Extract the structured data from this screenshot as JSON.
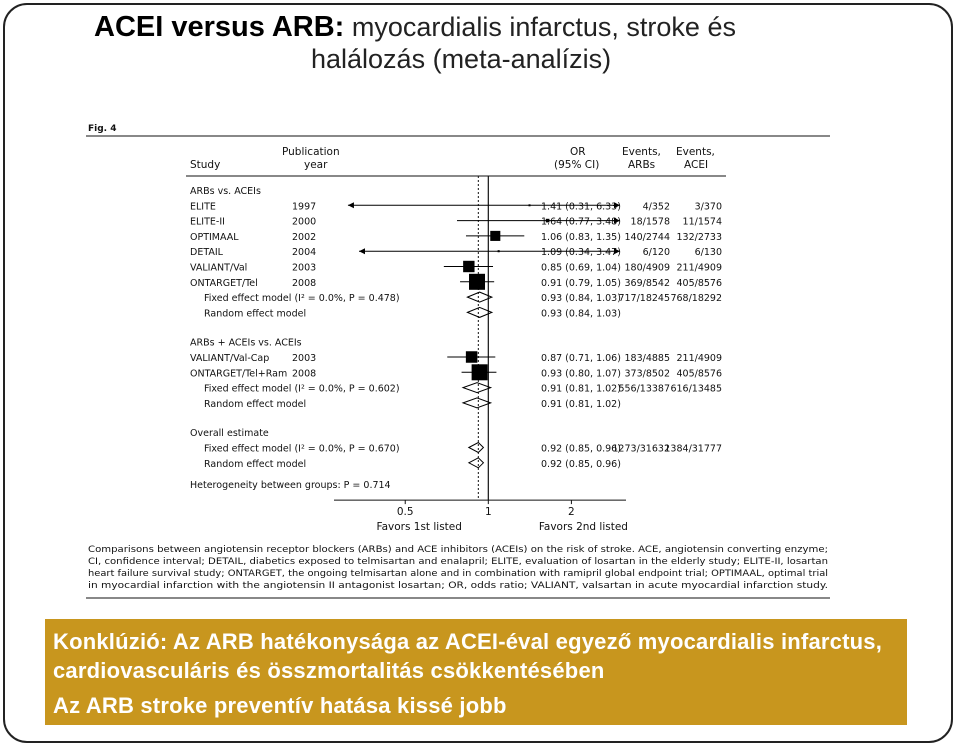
{
  "title": {
    "bold": "ACEI versus ARB:",
    "rest": " myocardialis infarctus, stroke és",
    "line2": "halálozás (meta-analízis)"
  },
  "figure": {
    "label": "Fig. 4",
    "headers": {
      "study": "Study",
      "pub1": "Publication",
      "pub2": "year",
      "or1": "OR",
      "or2": "(95% CI)",
      "ev_arb1": "Events,",
      "ev_arb2": "ARBs",
      "ev_acei1": "Events,",
      "ev_acei2": "ACEI"
    },
    "axis": {
      "tick_labels": [
        "0.5",
        "1",
        "2"
      ],
      "left_label": "Favors 1st listed",
      "right_label": "Favors 2nd listed"
    },
    "caption": [
      "Comparisons between angiotensin receptor blockers (ARBs) and ACE inhibitors (ACEIs) on the risk of stroke. ACE, angiotensin converting enzyme;",
      "CI, confidence interval; DETAIL, diabetics exposed to telmisartan and enalapril; ELITE, evaluation of losartan in the elderly study; ELITE-II, losartan",
      "heart failure survival study; ONTARGET, the ongoing telmisartan alone and in combination with ramipril global endpoint trial; OPTIMAAL, optimal trial",
      "in myocardial infarction with the angiotensin II antagonist losartan; OR, odds ratio; VALIANT, valsartan in acute myocardial infarction study."
    ]
  },
  "chart_data": {
    "type": "forest",
    "xscale": "log",
    "xlim": [
      0.3,
      3.0
    ],
    "xticks": [
      0.5,
      1,
      2
    ],
    "x_axis_text": [
      "Favors 1st listed",
      "Favors 2nd listed"
    ],
    "rows": [
      {
        "kind": "section",
        "label": "ARBs vs. ACEIs"
      },
      {
        "kind": "study",
        "label": "ELITE",
        "year": "1997",
        "or": 1.41,
        "lo": 0.31,
        "hi": 6.33,
        "or_text": "1.41 (0.31, 6.33)",
        "ev_arb": "4/352",
        "ev_acei": "3/370",
        "arrow_left": true,
        "arrow_right": true
      },
      {
        "kind": "study",
        "label": "ELITE-II",
        "year": "2000",
        "or": 1.64,
        "lo": 0.77,
        "hi": 3.48,
        "or_text": "1.64 (0.77, 3.48)",
        "ev_arb": "18/1578",
        "ev_acei": "11/1574",
        "arrow_left": false,
        "arrow_right": true
      },
      {
        "kind": "study",
        "label": "OPTIMAAL",
        "year": "2002",
        "or": 1.06,
        "lo": 0.83,
        "hi": 1.35,
        "or_text": "1.06 (0.83, 1.35)",
        "ev_arb": "140/2744",
        "ev_acei": "132/2733",
        "arrow_left": false,
        "arrow_right": false
      },
      {
        "kind": "study",
        "label": "DETAIL",
        "year": "2004",
        "or": 1.09,
        "lo": 0.34,
        "hi": 3.47,
        "or_text": "1.09 (0.34, 3.47)",
        "ev_arb": "6/120",
        "ev_acei": "6/130",
        "arrow_left": true,
        "arrow_right": true
      },
      {
        "kind": "study",
        "label": "VALIANT/Val",
        "year": "2003",
        "or": 0.85,
        "lo": 0.69,
        "hi": 1.04,
        "or_text": "0.85 (0.69, 1.04)",
        "ev_arb": "180/4909",
        "ev_acei": "211/4909",
        "arrow_left": false,
        "arrow_right": false
      },
      {
        "kind": "study",
        "label": "ONTARGET/Tel",
        "year": "2008",
        "or": 0.91,
        "lo": 0.79,
        "hi": 1.05,
        "or_text": "0.91 (0.79, 1.05)",
        "ev_arb": "369/8542",
        "ev_acei": "405/8576",
        "arrow_left": false,
        "arrow_right": false
      },
      {
        "kind": "pooled",
        "label": "Fixed effect model (I² = 0.0%, P = 0.478)",
        "or": 0.93,
        "lo": 0.84,
        "hi": 1.03,
        "or_text": "0.93 (0.84, 1.03)",
        "ev_arb": "717/18245",
        "ev_acei": "768/18292"
      },
      {
        "kind": "pooled",
        "label": "Random effect model",
        "or": 0.93,
        "lo": 0.84,
        "hi": 1.03,
        "or_text": "0.93 (0.84, 1.03)",
        "ev_arb": "",
        "ev_acei": ""
      },
      {
        "kind": "section",
        "label": "ARBs + ACEIs vs. ACEIs"
      },
      {
        "kind": "study",
        "label": "VALIANT/Val-Cap",
        "year": "2003",
        "or": 0.87,
        "lo": 0.71,
        "hi": 1.06,
        "or_text": "0.87 (0.71, 1.06)",
        "ev_arb": "183/4885",
        "ev_acei": "211/4909",
        "arrow_left": false,
        "arrow_right": false
      },
      {
        "kind": "study",
        "label": "ONTARGET/Tel+Ram",
        "year": "2008",
        "or": 0.93,
        "lo": 0.8,
        "hi": 1.07,
        "or_text": "0.93 (0.80, 1.07)",
        "ev_arb": "373/8502",
        "ev_acei": "405/8576",
        "arrow_left": false,
        "arrow_right": false
      },
      {
        "kind": "pooled",
        "label": "Fixed effect model (I² = 0.0%, P = 0.602)",
        "or": 0.91,
        "lo": 0.81,
        "hi": 1.02,
        "or_text": "0.91 (0.81, 1.02)",
        "ev_arb": "556/13387",
        "ev_acei": "616/13485"
      },
      {
        "kind": "pooled",
        "label": "Random effect model",
        "or": 0.91,
        "lo": 0.81,
        "hi": 1.02,
        "or_text": "0.91 (0.81, 1.02)",
        "ev_arb": "",
        "ev_acei": ""
      },
      {
        "kind": "section",
        "label": "Overall estimate"
      },
      {
        "kind": "pooled",
        "label": "Fixed effect model (I² = 0.0%, P = 0.670)",
        "or": 0.92,
        "lo": 0.85,
        "hi": 0.96,
        "or_text": "0.92 (0.85, 0.96)",
        "ev_arb": "1273/31632",
        "ev_acei": "1384/31777"
      },
      {
        "kind": "pooled",
        "label": "Random effect model",
        "or": 0.92,
        "lo": 0.85,
        "hi": 0.96,
        "or_text": "0.92 (0.85, 0.96)",
        "ev_arb": "",
        "ev_acei": ""
      },
      {
        "kind": "note",
        "label": "Heterogeneity between groups: P = 0.714"
      }
    ]
  },
  "conclusion": {
    "main": "Konklúzió: Az ARB hatékonysága az ACEI-éval egyező myocardialis infarctus, cardiovasculáris és összmortalitás csökkentésében",
    "secondary": "Az ARB stroke preventív hatása kissé jobb"
  },
  "colors": {
    "box": "#c8961e",
    "box_text": "#ffffff",
    "marker": "#000000"
  }
}
